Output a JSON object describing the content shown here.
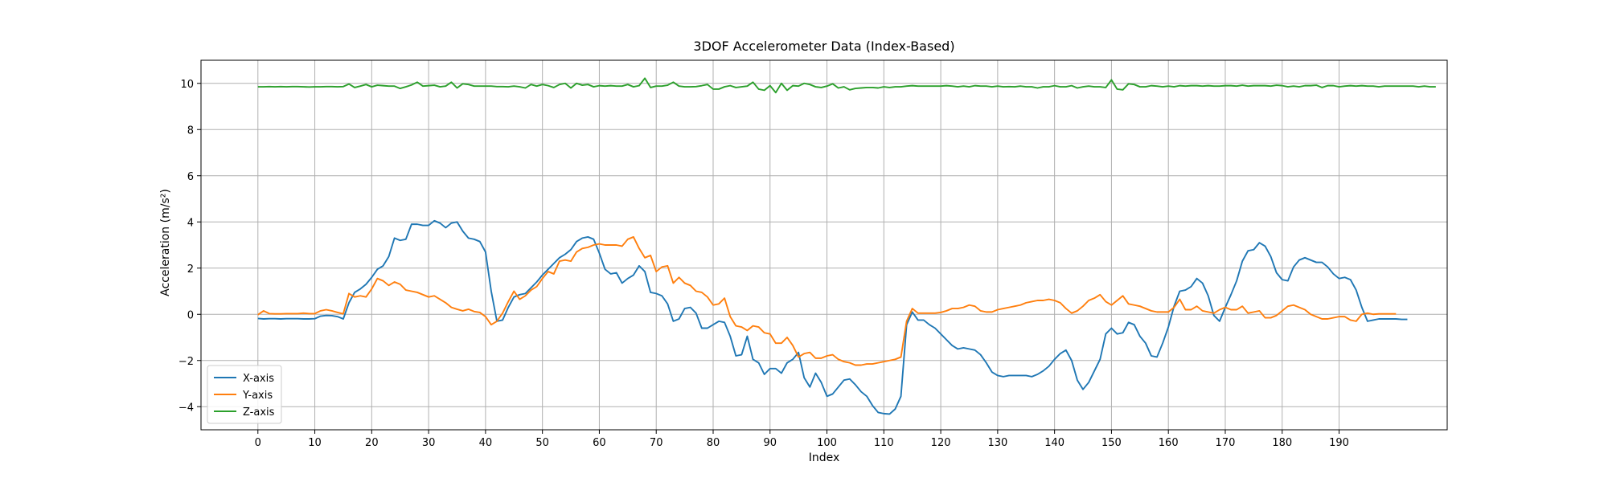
{
  "chart_data": {
    "type": "line",
    "title": "3DOF Accelerometer Data (Index-Based)",
    "xlabel": "Index",
    "ylabel": "Acceleration (m/s²)",
    "xlim": [
      -10,
      209
    ],
    "ylim": [
      -5,
      11
    ],
    "x_ticks": [
      0,
      10,
      20,
      30,
      40,
      50,
      60,
      70,
      80,
      90,
      100,
      110,
      120,
      130,
      140,
      150,
      160,
      170,
      180,
      190
    ],
    "y_ticks": [
      -4,
      -2,
      0,
      2,
      4,
      6,
      8,
      10
    ],
    "grid": true,
    "legend": "lower-left",
    "series": [
      {
        "name": "X-axis",
        "color": "#1f77b4",
        "values": [
          -0.18,
          -0.2,
          -0.19,
          -0.19,
          -0.2,
          -0.19,
          -0.19,
          -0.19,
          -0.2,
          -0.2,
          -0.19,
          -0.08,
          -0.05,
          -0.06,
          -0.1,
          -0.2,
          0.5,
          0.95,
          1.1,
          1.3,
          1.6,
          1.95,
          2.1,
          2.5,
          3.3,
          3.2,
          3.25,
          3.9,
          3.9,
          3.85,
          3.85,
          4.05,
          3.95,
          3.75,
          3.95,
          4.0,
          3.6,
          3.3,
          3.25,
          3.15,
          2.7,
          1.0,
          -0.3,
          -0.25,
          0.3,
          0.75,
          0.85,
          0.9,
          1.15,
          1.4,
          1.7,
          1.95,
          2.2,
          2.45,
          2.6,
          2.8,
          3.15,
          3.3,
          3.35,
          3.25,
          2.65,
          1.95,
          1.75,
          1.8,
          1.35,
          1.55,
          1.7,
          2.1,
          1.85,
          0.95,
          0.9,
          0.8,
          0.45,
          -0.3,
          -0.2,
          0.25,
          0.3,
          0.05,
          -0.6,
          -0.6,
          -0.45,
          -0.3,
          -0.35,
          -0.95,
          -1.8,
          -1.75,
          -0.95,
          -1.95,
          -2.1,
          -2.6,
          -2.35,
          -2.35,
          -2.55,
          -2.1,
          -1.95,
          -1.65,
          -2.75,
          -3.15,
          -2.55,
          -2.95,
          -3.55,
          -3.45,
          -3.15,
          -2.85,
          -2.8,
          -3.05,
          -3.35,
          -3.55,
          -3.95,
          -4.25,
          -4.3,
          -4.32,
          -4.1,
          -3.55,
          -0.45,
          0.1,
          -0.25,
          -0.25,
          -0.45,
          -0.6,
          -0.85,
          -1.1,
          -1.35,
          -1.5,
          -1.45,
          -1.5,
          -1.55,
          -1.75,
          -2.1,
          -2.5,
          -2.65,
          -2.7,
          -2.65,
          -2.65,
          -2.65,
          -2.65,
          -2.7,
          -2.6,
          -2.45,
          -2.25,
          -1.95,
          -1.7,
          -1.55,
          -2.0,
          -2.85,
          -3.25,
          -2.95,
          -2.45,
          -1.95,
          -0.85,
          -0.6,
          -0.85,
          -0.8,
          -0.35,
          -0.45,
          -0.95,
          -1.25,
          -1.8,
          -1.85,
          -1.25,
          -0.55,
          0.35,
          1.0,
          1.05,
          1.2,
          1.55,
          1.35,
          0.8,
          -0.05,
          -0.3,
          0.3,
          0.85,
          1.45,
          2.3,
          2.75,
          2.8,
          3.1,
          2.95,
          2.5,
          1.8,
          1.5,
          1.45,
          2.05,
          2.35,
          2.45,
          2.35,
          2.25,
          2.25,
          2.05,
          1.75,
          1.55,
          1.6,
          1.5,
          1.05,
          0.3,
          -0.3,
          -0.25,
          -0.2,
          -0.2,
          -0.2,
          -0.2,
          -0.22,
          -0.22
        ]
      },
      {
        "name": "Y-axis",
        "color": "#ff7f0e",
        "values": [
          -0.02,
          0.15,
          0.03,
          0.02,
          0.02,
          0.03,
          0.03,
          0.03,
          0.05,
          0.03,
          0.03,
          0.15,
          0.2,
          0.15,
          0.08,
          0.02,
          0.9,
          0.75,
          0.8,
          0.75,
          1.1,
          1.55,
          1.45,
          1.25,
          1.4,
          1.3,
          1.05,
          1.0,
          0.95,
          0.85,
          0.75,
          0.8,
          0.65,
          0.5,
          0.3,
          0.22,
          0.15,
          0.22,
          0.12,
          0.08,
          -0.1,
          -0.45,
          -0.3,
          0.05,
          0.55,
          1.0,
          0.65,
          0.8,
          1.05,
          1.2,
          1.55,
          1.85,
          1.75,
          2.3,
          2.35,
          2.3,
          2.7,
          2.85,
          2.9,
          3.0,
          3.05,
          3.0,
          3.0,
          3.0,
          2.95,
          3.25,
          3.35,
          2.85,
          2.45,
          2.55,
          1.85,
          2.05,
          2.1,
          1.35,
          1.6,
          1.35,
          1.25,
          1.0,
          0.95,
          0.75,
          0.4,
          0.45,
          0.7,
          -0.1,
          -0.5,
          -0.55,
          -0.7,
          -0.5,
          -0.55,
          -0.8,
          -0.85,
          -1.25,
          -1.25,
          -1.0,
          -1.35,
          -1.85,
          -1.7,
          -1.65,
          -1.9,
          -1.9,
          -1.8,
          -1.75,
          -1.95,
          -2.05,
          -2.1,
          -2.2,
          -2.2,
          -2.15,
          -2.15,
          -2.1,
          -2.05,
          -2.0,
          -1.95,
          -1.85,
          -0.3,
          0.25,
          0.05,
          0.05,
          0.05,
          0.05,
          0.08,
          0.15,
          0.25,
          0.25,
          0.3,
          0.4,
          0.35,
          0.15,
          0.1,
          0.1,
          0.2,
          0.25,
          0.3,
          0.35,
          0.4,
          0.5,
          0.55,
          0.6,
          0.6,
          0.65,
          0.6,
          0.5,
          0.25,
          0.05,
          0.15,
          0.35,
          0.6,
          0.7,
          0.85,
          0.55,
          0.4,
          0.6,
          0.8,
          0.45,
          0.4,
          0.35,
          0.25,
          0.15,
          0.1,
          0.1,
          0.1,
          0.3,
          0.65,
          0.2,
          0.2,
          0.35,
          0.15,
          0.1,
          0.05,
          0.2,
          0.3,
          0.2,
          0.2,
          0.35,
          0.05,
          0.1,
          0.15,
          -0.15,
          -0.15,
          -0.05,
          0.15,
          0.35,
          0.4,
          0.3,
          0.2,
          0.0,
          -0.1,
          -0.2,
          -0.2,
          -0.15,
          -0.1,
          -0.1,
          -0.25,
          -0.3,
          0.0,
          0.05,
          0.0,
          0.02,
          0.02,
          0.02,
          0.02
        ]
      },
      {
        "name": "Z-axis",
        "color": "#2ca02c",
        "values": [
          9.85,
          9.85,
          9.86,
          9.85,
          9.86,
          9.85,
          9.86,
          9.86,
          9.85,
          9.84,
          9.85,
          9.85,
          9.86,
          9.86,
          9.85,
          9.86,
          9.97,
          9.82,
          9.88,
          9.95,
          9.85,
          9.92,
          9.9,
          9.88,
          9.88,
          9.78,
          9.85,
          9.93,
          10.05,
          9.88,
          9.9,
          9.92,
          9.85,
          9.88,
          10.05,
          9.8,
          9.98,
          9.95,
          9.88,
          9.88,
          9.88,
          9.88,
          9.86,
          9.86,
          9.85,
          9.88,
          9.85,
          9.8,
          9.95,
          9.88,
          9.95,
          9.9,
          9.82,
          9.95,
          10.0,
          9.8,
          10.0,
          9.92,
          9.95,
          9.85,
          9.9,
          9.88,
          9.9,
          9.88,
          9.88,
          9.95,
          9.85,
          9.9,
          10.22,
          9.82,
          9.88,
          9.88,
          9.92,
          10.05,
          9.88,
          9.85,
          9.85,
          9.86,
          9.9,
          9.95,
          9.75,
          9.75,
          9.85,
          9.9,
          9.82,
          9.85,
          9.88,
          10.05,
          9.75,
          9.7,
          9.9,
          9.6,
          10.0,
          9.7,
          9.9,
          9.88,
          10.0,
          9.95,
          9.85,
          9.82,
          9.88,
          9.98,
          9.8,
          9.85,
          9.72,
          9.78,
          9.8,
          9.82,
          9.82,
          9.8,
          9.85,
          9.82,
          9.85,
          9.85,
          9.88,
          9.9,
          9.88,
          9.88,
          9.88,
          9.88,
          9.88,
          9.9,
          9.88,
          9.85,
          9.88,
          9.85,
          9.9,
          9.88,
          9.88,
          9.85,
          9.88,
          9.85,
          9.86,
          9.85,
          9.88,
          9.85,
          9.85,
          9.8,
          9.85,
          9.85,
          9.9,
          9.85,
          9.85,
          9.9,
          9.8,
          9.85,
          9.88,
          9.85,
          9.85,
          9.82,
          10.15,
          9.75,
          9.72,
          9.98,
          9.95,
          9.85,
          9.85,
          9.9,
          9.88,
          9.85,
          9.88,
          9.85,
          9.9,
          9.88,
          9.9,
          9.9,
          9.88,
          9.9,
          9.88,
          9.88,
          9.9,
          9.9,
          9.88,
          9.92,
          9.88,
          9.9,
          9.9,
          9.9,
          9.88,
          9.92,
          9.9,
          9.85,
          9.88,
          9.85,
          9.9,
          9.9,
          9.92,
          9.82,
          9.9,
          9.9,
          9.85,
          9.88,
          9.9,
          9.88,
          9.9,
          9.88,
          9.88,
          9.85,
          9.88,
          9.88,
          9.88,
          9.88,
          9.88,
          9.88,
          9.85,
          9.88,
          9.85,
          9.85
        ]
      }
    ]
  }
}
